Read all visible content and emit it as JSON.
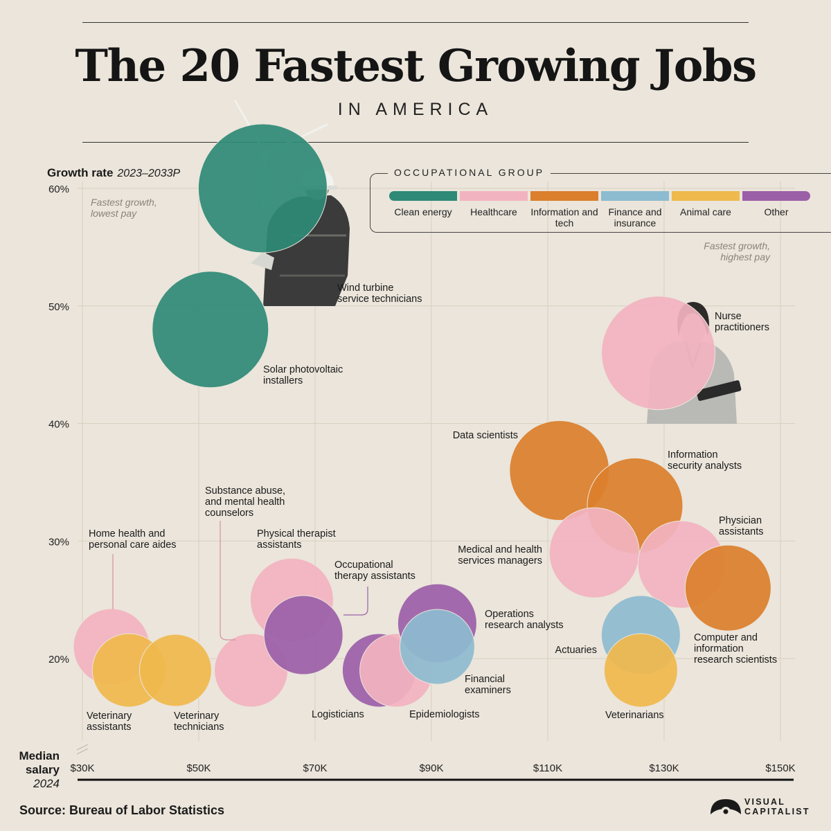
{
  "header": {
    "title": "The 20 Fastest Growing Jobs",
    "subtitle": "IN AMERICA"
  },
  "legend": {
    "title": "OCCUPATIONAL GROUP",
    "items": [
      {
        "label": "Clean energy",
        "color": "#2e8a76"
      },
      {
        "label": "Healthcare",
        "color": "#f2b3c0"
      },
      {
        "label": "Information and tech",
        "color": "#db7f2d"
      },
      {
        "label": "Finance and insurance",
        "color": "#8dbcd0"
      },
      {
        "label": "Animal care",
        "color": "#f0b94d"
      },
      {
        "label": "Other",
        "color": "#9b5fa8"
      }
    ]
  },
  "source": "Source: Bureau of Labor Statistics",
  "logo_text": "VISUAL CAPITALIST",
  "chart_data": {
    "type": "scatter",
    "title": "The 20 Fastest Growing Jobs",
    "subtitle": "IN AMERICA",
    "ylabel": "Growth rate",
    "ylabel_period": "2023–2033P",
    "xlabel": "Median salary",
    "xlabel_period": "2024",
    "xlim": [
      30000,
      150000
    ],
    "ylim": [
      14,
      60
    ],
    "x_ticks": [
      {
        "value": 30000,
        "label": "$30K"
      },
      {
        "value": 50000,
        "label": "$50K"
      },
      {
        "value": 70000,
        "label": "$70K"
      },
      {
        "value": 90000,
        "label": "$90K"
      },
      {
        "value": 110000,
        "label": "$110K"
      },
      {
        "value": 130000,
        "label": "$130K"
      },
      {
        "value": 150000,
        "label": "$150K"
      }
    ],
    "y_ticks": [
      {
        "value": 20,
        "label": "20%"
      },
      {
        "value": 30,
        "label": "30%"
      },
      {
        "value": 40,
        "label": "40%"
      },
      {
        "value": 50,
        "label": "50%"
      },
      {
        "value": 60,
        "label": "60%"
      }
    ],
    "grid": true,
    "legend_position": "top-right",
    "annotations": [
      {
        "text": "Fastest growth, lowest pay",
        "position": "top-left"
      },
      {
        "text": "Fastest growth, highest pay",
        "position": "top-right"
      }
    ],
    "points": [
      {
        "label": "Wind turbine service technicians",
        "salary": 61000,
        "growth": 60,
        "group": "Clean energy"
      },
      {
        "label": "Solar photovoltaic installers",
        "salary": 52000,
        "growth": 48,
        "group": "Clean energy"
      },
      {
        "label": "Nurse practitioners",
        "salary": 129000,
        "growth": 46,
        "group": "Healthcare"
      },
      {
        "label": "Data scientists",
        "salary": 112000,
        "growth": 36,
        "group": "Information and tech"
      },
      {
        "label": "Information security analysts",
        "salary": 125000,
        "growth": 33,
        "group": "Information and tech"
      },
      {
        "label": "Medical and health services managers",
        "salary": 118000,
        "growth": 29,
        "group": "Healthcare"
      },
      {
        "label": "Physician assistants",
        "salary": 133000,
        "growth": 28,
        "group": "Healthcare"
      },
      {
        "label": "Computer and information research scientists",
        "salary": 141000,
        "growth": 26,
        "group": "Information and tech"
      },
      {
        "label": "Actuaries",
        "salary": 126000,
        "growth": 22,
        "group": "Finance and insurance"
      },
      {
        "label": "Veterinarians",
        "salary": 126000,
        "growth": 19,
        "group": "Animal care"
      },
      {
        "label": "Home health and personal care aides",
        "salary": 35000,
        "growth": 21,
        "group": "Healthcare"
      },
      {
        "label": "Veterinary assistants",
        "salary": 38000,
        "growth": 19,
        "group": "Animal care"
      },
      {
        "label": "Veterinary technicians",
        "salary": 46000,
        "growth": 19,
        "group": "Animal care"
      },
      {
        "label": "Substance abuse, and mental health counselors",
        "salary": 59000,
        "growth": 19,
        "group": "Healthcare"
      },
      {
        "label": "Physical therapist assistants",
        "salary": 66000,
        "growth": 25,
        "group": "Healthcare"
      },
      {
        "label": "Occupational therapy assistants",
        "salary": 68000,
        "growth": 22,
        "group": "Other"
      },
      {
        "label": "Logisticians",
        "salary": 81000,
        "growth": 19,
        "group": "Other"
      },
      {
        "label": "Epidemiologists",
        "salary": 84000,
        "growth": 19,
        "group": "Healthcare"
      },
      {
        "label": "Operations research analysts",
        "salary": 91000,
        "growth": 23,
        "group": "Other"
      },
      {
        "label": "Financial examiners",
        "salary": 91000,
        "growth": 21,
        "group": "Finance and insurance"
      }
    ]
  }
}
